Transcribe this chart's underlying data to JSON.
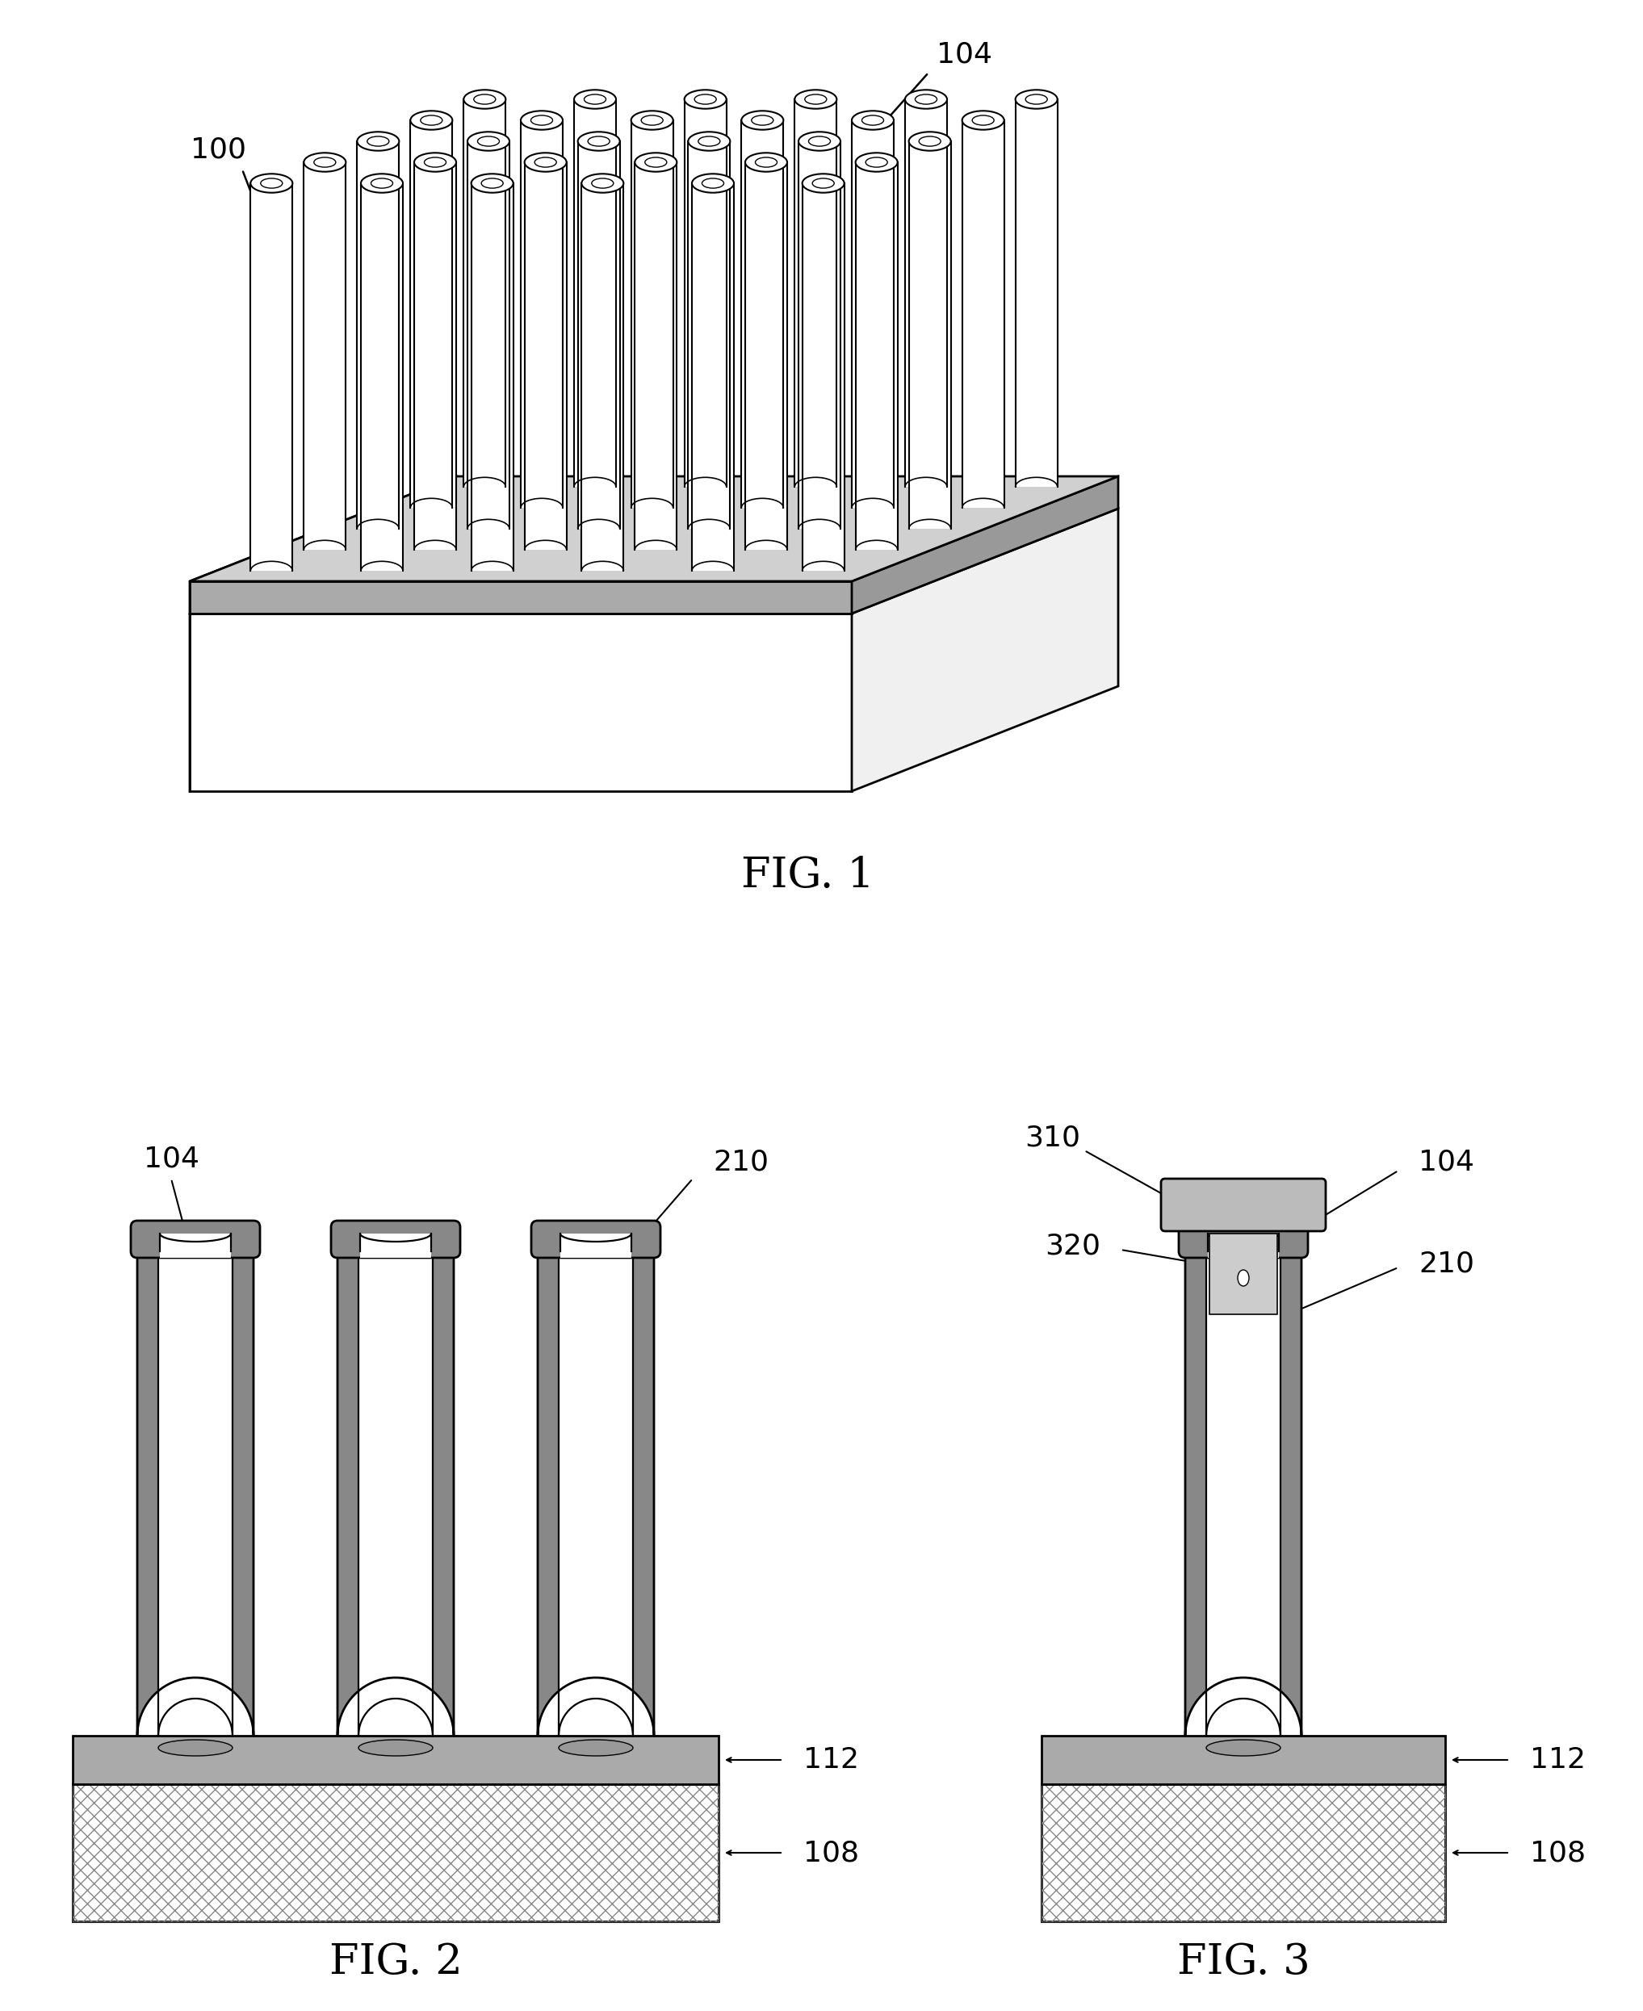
{
  "bg_color": "#ffffff",
  "fig1_label": "FIG. 1",
  "fig2_label": "FIG. 2",
  "fig3_label": "FIG. 3",
  "lw_main": 2.0,
  "lw_thin": 1.2,
  "dark_gray": "#777777",
  "mid_gray": "#aaaaaa",
  "light_gray": "#cccccc",
  "xhatch_gray": "#999999"
}
